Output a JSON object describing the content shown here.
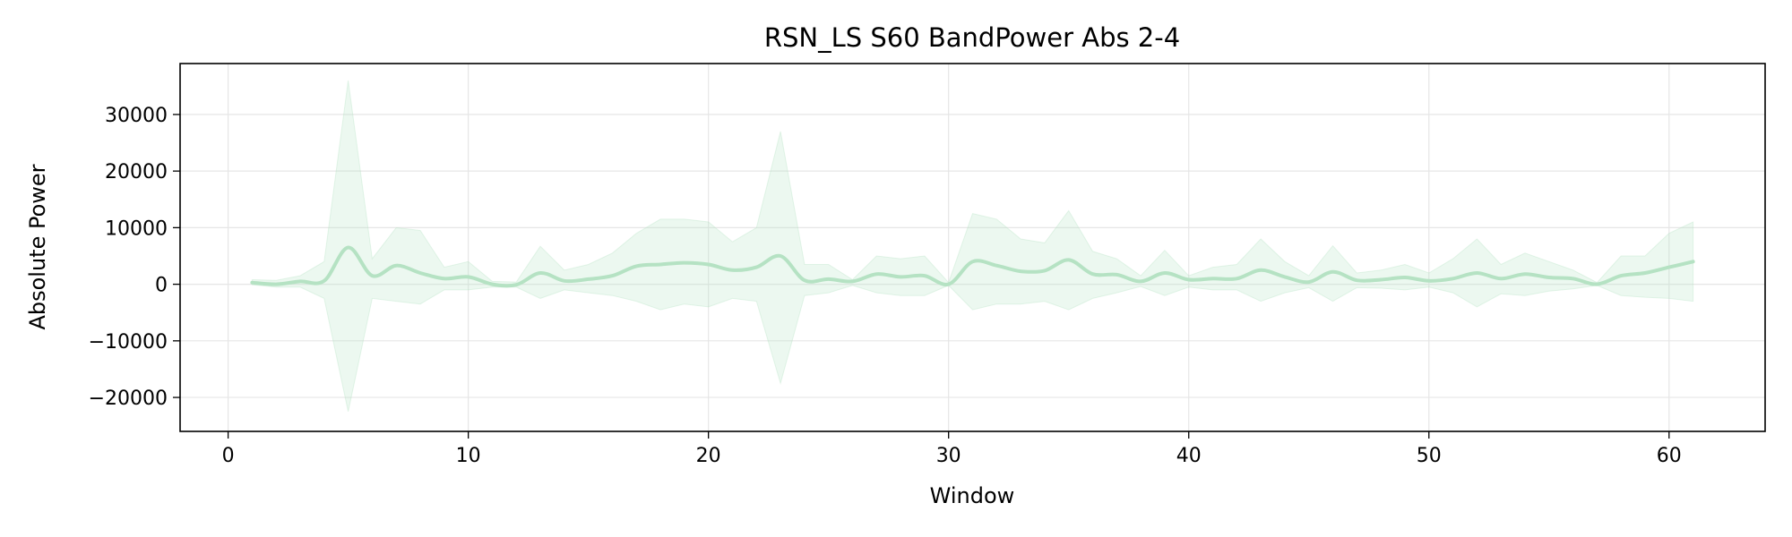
{
  "chart_data": {
    "type": "line",
    "title": "RSN_LS S60 BandPower Abs 2-4",
    "xlabel": "Window",
    "ylabel": "Absolute Power",
    "xlim": [
      -2,
      64
    ],
    "ylim": [
      -26000,
      39000
    ],
    "xticks": [
      0,
      10,
      20,
      30,
      40,
      50,
      60
    ],
    "yticks": [
      -20000,
      -10000,
      0,
      10000,
      20000,
      30000
    ],
    "ytick_labels": [
      "−20000",
      "−10000",
      "0",
      "10000",
      "20000",
      "30000"
    ],
    "grid": true,
    "line_color": "#b5e2c3",
    "band_color": "#b5e2c3",
    "band_opacity": 0.25,
    "series": [
      {
        "x": [
          1,
          2,
          3,
          4,
          5,
          6,
          7,
          8,
          9,
          10,
          11,
          12,
          13,
          14,
          15,
          16,
          17,
          18,
          19,
          20,
          21,
          22,
          23,
          24,
          25,
          26,
          27,
          28,
          29,
          30,
          31,
          32,
          33,
          34,
          35,
          36,
          37,
          38,
          39,
          40,
          41,
          42,
          43,
          44,
          45,
          46,
          47,
          48,
          49,
          50,
          51,
          52,
          53,
          54,
          55,
          56,
          57,
          58,
          59,
          60,
          61
        ],
        "y": [
          300,
          0,
          500,
          600,
          6500,
          1500,
          3300,
          2000,
          1000,
          1300,
          0,
          -100,
          2000,
          600,
          900,
          1500,
          3200,
          3500,
          3800,
          3500,
          2500,
          3000,
          5000,
          700,
          900,
          500,
          1800,
          1300,
          1500,
          0,
          4000,
          3300,
          2300,
          2400,
          4300,
          1800,
          1700,
          500,
          2000,
          800,
          1000,
          1000,
          2500,
          1300,
          400,
          2200,
          700,
          800,
          1200,
          600,
          1000,
          2000,
          1000,
          1800,
          1200,
          1000,
          0,
          1500,
          2000,
          3000,
          4000
        ],
        "upper": [
          800,
          700,
          1500,
          4000,
          36000,
          4500,
          10000,
          9500,
          3000,
          4000,
          500,
          400,
          6700,
          2500,
          3500,
          5500,
          9000,
          11500,
          11500,
          11000,
          7500,
          10000,
          27000,
          3500,
          3500,
          800,
          5000,
          4500,
          5000,
          300,
          12500,
          11500,
          8000,
          7300,
          13000,
          5800,
          4500,
          1500,
          6000,
          1500,
          3000,
          3500,
          8000,
          4000,
          1500,
          6800,
          2000,
          2500,
          3500,
          2000,
          4500,
          8000,
          3500,
          5500,
          4000,
          2500,
          300,
          5000,
          5000,
          9000,
          11000
        ],
        "lower": [
          -100,
          -500,
          -500,
          -2500,
          -22500,
          -2500,
          -3000,
          -3500,
          -1000,
          -1000,
          -500,
          -500,
          -2500,
          -1000,
          -1500,
          -2000,
          -3000,
          -4500,
          -3500,
          -4000,
          -2500,
          -3000,
          -17500,
          -2000,
          -1500,
          -200,
          -1500,
          -2000,
          -2000,
          -200,
          -4500,
          -3500,
          -3500,
          -3000,
          -4500,
          -2500,
          -1500,
          -400,
          -2000,
          -500,
          -1000,
          -1000,
          -3000,
          -1500,
          -600,
          -3000,
          -600,
          -700,
          -1000,
          -500,
          -1500,
          -4000,
          -1700,
          -2000,
          -1200,
          -800,
          -200,
          -2000,
          -2300,
          -2500,
          -3000
        ]
      }
    ]
  }
}
